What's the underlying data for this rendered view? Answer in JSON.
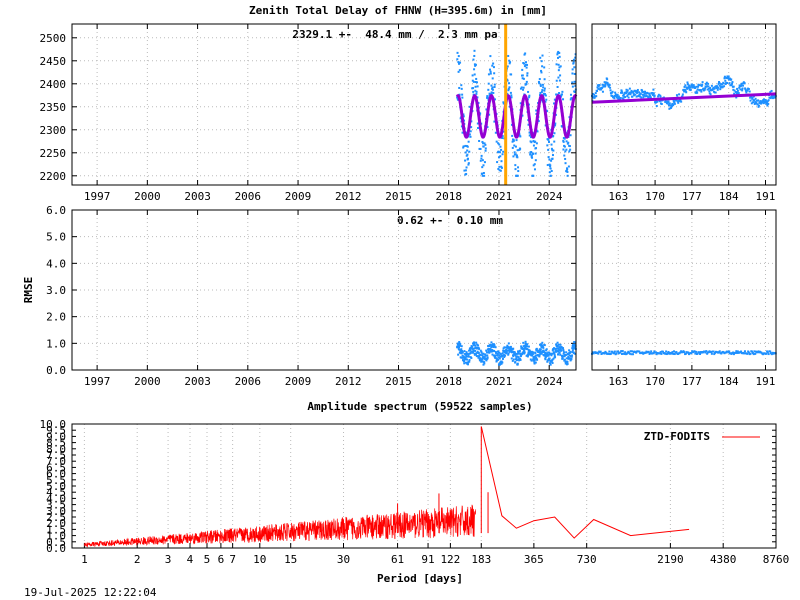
{
  "title": "Zenith Total Delay of FHNW (H=395.6m) in [mm]",
  "timestamp": "19-Jul-2025 12:22:04",
  "colors": {
    "data": "#1e90ff",
    "model": "#9400d3",
    "event": "#ffa500",
    "spectrum": "#ff0000"
  },
  "chart_data": [
    {
      "type": "scatter",
      "panel": "ztd-long",
      "annotation": "2329.1 +-  48.4 mm /  2.3 mm pa",
      "ylabel": "",
      "xlim": [
        1995.5,
        2025.6
      ],
      "ylim": [
        2180,
        2530
      ],
      "x_ticks": [
        "1997",
        "2000",
        "2003",
        "2006",
        "2009",
        "2012",
        "2015",
        "2018",
        "2021",
        "2024"
      ],
      "y_ticks": [
        "2200",
        "2250",
        "2300",
        "2350",
        "2400",
        "2450",
        "2500"
      ],
      "event_line_x": 2021.4,
      "series": [
        {
          "role": "observations",
          "x_range": [
            2018.5,
            2025.6
          ],
          "min": 2200,
          "max": 2490,
          "mean": 2329.1,
          "annual_amplitude": 90
        },
        {
          "role": "model",
          "x_range": [
            2018.5,
            2025.6
          ],
          "mean": 2329.1,
          "annual_amplitude": 45,
          "trend_mm_per_year": 2.3
        }
      ]
    },
    {
      "type": "scatter",
      "panel": "ztd-recent",
      "xlim": [
        158,
        193
      ],
      "ylim": [
        2180,
        2530
      ],
      "x_ticks": [
        "163",
        "170",
        "177",
        "184",
        "191"
      ],
      "series": [
        {
          "role": "observations",
          "min": 2300,
          "max": 2480
        },
        {
          "role": "model",
          "start": 2360,
          "end": 2378
        }
      ]
    },
    {
      "type": "scatter",
      "panel": "rmse-long",
      "annotation": "0.62 +-  0.10 mm",
      "ylabel": "RMSE",
      "xlim": [
        1995.5,
        2025.6
      ],
      "ylim": [
        0,
        6
      ],
      "x_ticks": [
        "1997",
        "2000",
        "2003",
        "2006",
        "2009",
        "2012",
        "2015",
        "2018",
        "2021",
        "2024"
      ],
      "y_ticks": [
        "0.0",
        "1.0",
        "2.0",
        "3.0",
        "4.0",
        "5.0",
        "6.0"
      ],
      "series": [
        {
          "role": "rmse",
          "x_range": [
            2018.5,
            2025.6
          ],
          "mean": 0.62,
          "std": 0.1
        }
      ]
    },
    {
      "type": "scatter",
      "panel": "rmse-recent",
      "xlim": [
        158,
        193
      ],
      "ylim": [
        0,
        6
      ],
      "x_ticks": [
        "163",
        "170",
        "177",
        "184",
        "191"
      ],
      "series": [
        {
          "role": "rmse",
          "mean": 0.65,
          "std": 0.06
        }
      ]
    },
    {
      "type": "line",
      "panel": "spectrum",
      "title": "Amplitude spectrum (59522 samples)",
      "xlabel": "Period [days]",
      "xscale": "log",
      "xlim": [
        0.85,
        8760
      ],
      "ylim": [
        0,
        10
      ],
      "x_ticks": [
        "1",
        "2",
        "3",
        "4",
        "5",
        "6",
        "7",
        "10",
        "15",
        "30",
        "61",
        "91",
        "122",
        "183",
        "365",
        "730",
        "2190",
        "4380",
        "8760"
      ],
      "y_ticks": [
        "0.0",
        "0.5",
        "1.0",
        "1.5",
        "2.0",
        "2.5",
        "3.0",
        "3.5",
        "4.0",
        "4.5",
        "5.0",
        "5.5",
        "6.0",
        "6.5",
        "7.0",
        "7.5",
        "8.0",
        "8.5",
        "9.0",
        "9.5",
        "10.0"
      ],
      "legend": "ZTD-FODITS",
      "legend_position": "top-right",
      "peaks": [
        {
          "period": 183,
          "amplitude": 9.8
        },
        {
          "period": 200,
          "amplitude": 4.5
        },
        {
          "period": 105,
          "amplitude": 4.4
        },
        {
          "period": 61,
          "amplitude": 3.6
        }
      ],
      "tail": [
        {
          "period": 240,
          "amplitude": 2.6
        },
        {
          "period": 290,
          "amplitude": 1.6
        },
        {
          "period": 365,
          "amplitude": 2.2
        },
        {
          "period": 480,
          "amplitude": 2.5
        },
        {
          "period": 620,
          "amplitude": 0.8
        },
        {
          "period": 800,
          "amplitude": 2.3
        },
        {
          "period": 1300,
          "amplitude": 1.0
        },
        {
          "period": 2800,
          "amplitude": 1.5
        }
      ]
    }
  ]
}
